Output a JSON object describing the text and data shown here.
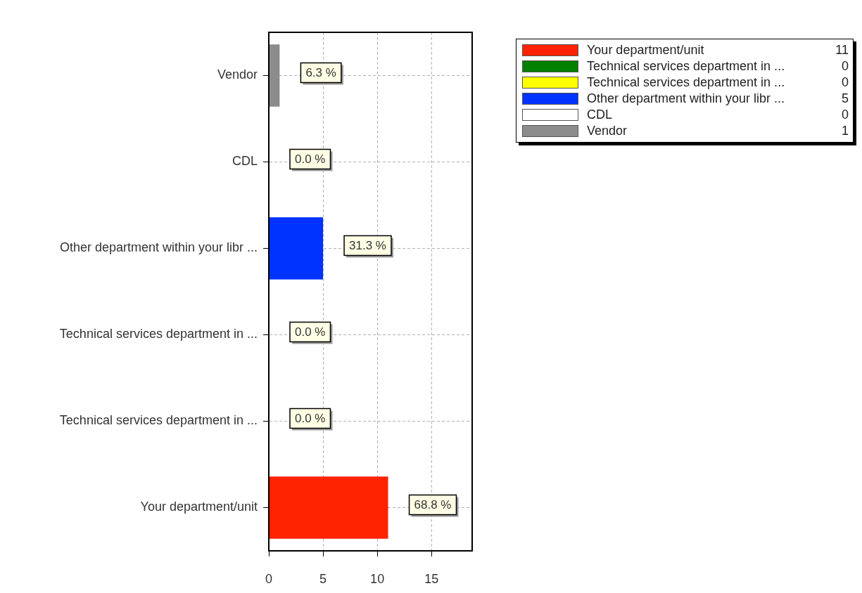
{
  "chart_data": {
    "type": "bar",
    "orientation": "horizontal",
    "stacked": true,
    "categories": [
      "Vendor",
      "CDL",
      "Other department within your libr ...",
      "Technical services department in ...",
      "Technical services department in ...",
      "Your department/unit"
    ],
    "series": [
      {
        "name": "Your department/unit",
        "color": "#ff2200",
        "values": [
          null,
          null,
          null,
          null,
          null,
          11
        ]
      },
      {
        "name": "Technical services department in ...",
        "color": "#008000",
        "values": [
          null,
          null,
          null,
          null,
          0,
          null
        ]
      },
      {
        "name": "Technical services department in ...",
        "color": "#ffff00",
        "values": [
          null,
          null,
          null,
          0,
          null,
          null
        ]
      },
      {
        "name": "Other department within your libr ...",
        "color": "#0033ff",
        "values": [
          null,
          null,
          5,
          null,
          null,
          null
        ]
      },
      {
        "name": "CDL",
        "color": "#ffffff",
        "values": [
          null,
          0,
          null,
          null,
          null,
          null
        ]
      },
      {
        "name": "Vendor",
        "color": "#8c8c8c",
        "values": [
          1,
          null,
          null,
          null,
          null,
          null
        ]
      }
    ],
    "annotations": [
      {
        "text": "6.3 %",
        "x": 1,
        "y": "Vendor"
      },
      {
        "text": "0.0 %",
        "x": 0,
        "y": "CDL"
      },
      {
        "text": "31.3 %",
        "x": 5,
        "y": "Other department within your libr ..."
      },
      {
        "text": "0.0 %",
        "x": 0,
        "y": "Technical services department in ..."
      },
      {
        "text": "0.0 %",
        "x": 0
      },
      {
        "text": "68.8 %",
        "x": 11,
        "y": "Your department/unit"
      },
      "11",
      "0",
      "0",
      "5",
      "0",
      "1"
    ],
    "xlim": [
      0,
      18.75
    ],
    "xticks": [
      0,
      5,
      10,
      15
    ],
    "grid": true,
    "legend": "top right"
  }
}
